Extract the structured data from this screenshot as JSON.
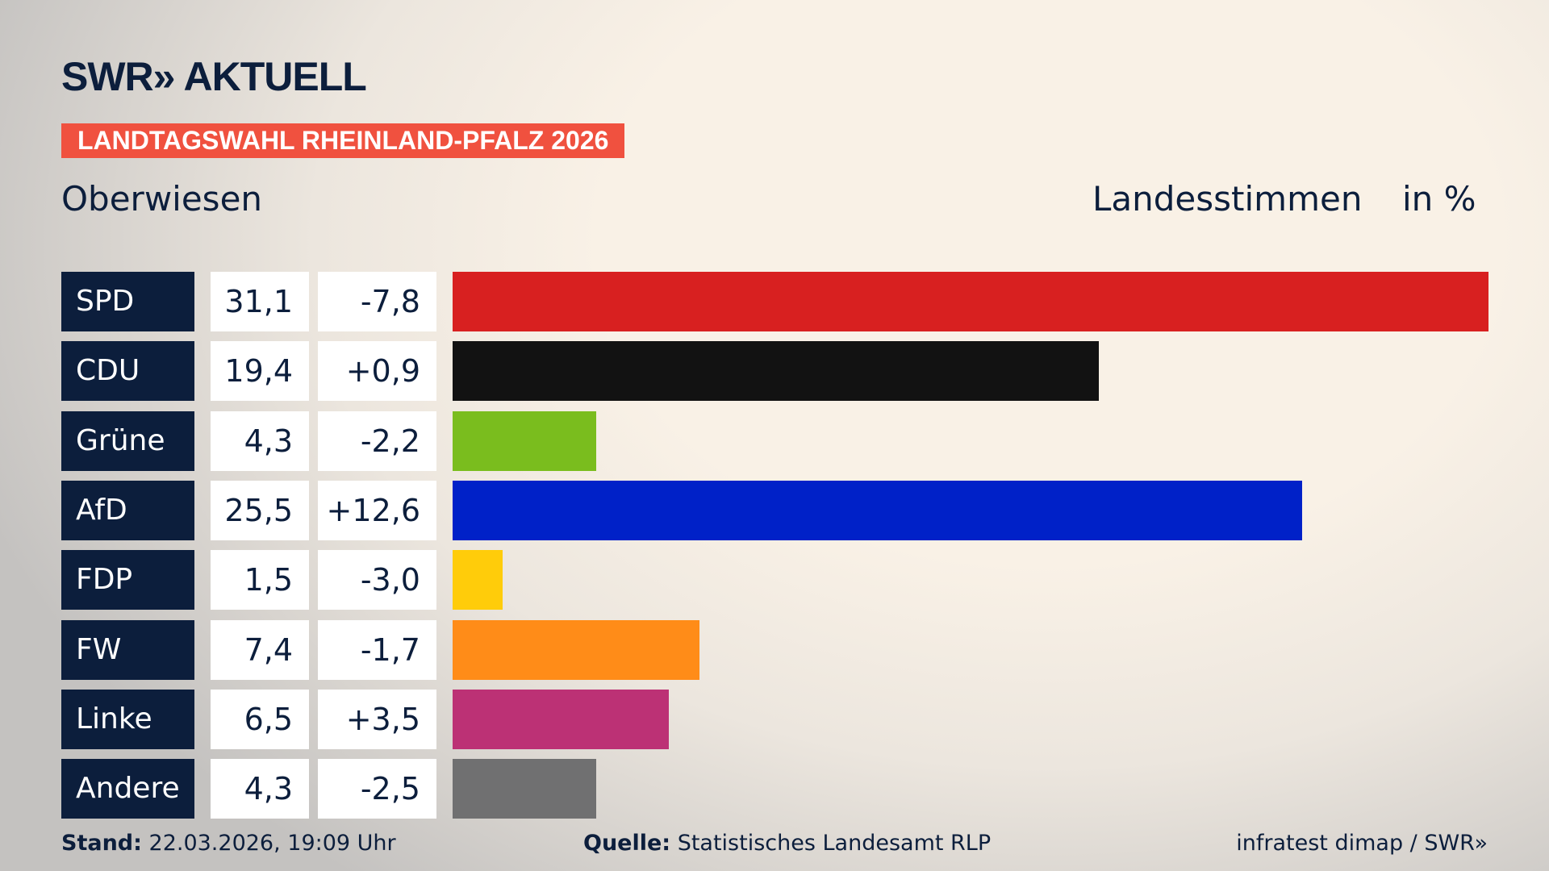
{
  "brand": {
    "logo": "SWR» AKTUELL"
  },
  "banner": "LANDTAGSWAHL RHEINLAND-PFALZ 2026",
  "location": "Oberwiesen",
  "header": {
    "vote_type": "Landesstimmen",
    "unit": "in %"
  },
  "chart_data": {
    "type": "bar",
    "orientation": "horizontal",
    "categories": [
      "SPD",
      "CDU",
      "Grüne",
      "AfD",
      "FDP",
      "FW",
      "Linke",
      "Andere"
    ],
    "values": [
      31.1,
      19.4,
      4.3,
      25.5,
      1.5,
      7.4,
      6.5,
      4.3
    ],
    "value_labels": [
      "31,1",
      "19,4",
      "4,3",
      "25,5",
      "1,5",
      "7,4",
      "6,5",
      "4,3"
    ],
    "diff_labels": [
      "-7,8",
      "+0,9",
      "-2,2",
      "+12,6",
      "-3,0",
      "-1,7",
      "+3,5",
      "-2,5"
    ],
    "colors": [
      "#d82020",
      "#121212",
      "#7abd1e",
      "#0021c8",
      "#ffcc0a",
      "#ff8c18",
      "#bc3175",
      "#707071"
    ],
    "xlim": [
      0,
      31.1
    ]
  },
  "footer": {
    "stand_label": "Stand:",
    "stand_value": "22.03.2026, 19:09 Uhr",
    "source_label": "Quelle:",
    "source_value": "Statistisches Landesamt RLP",
    "credit": "infratest dimap / SWR»"
  }
}
